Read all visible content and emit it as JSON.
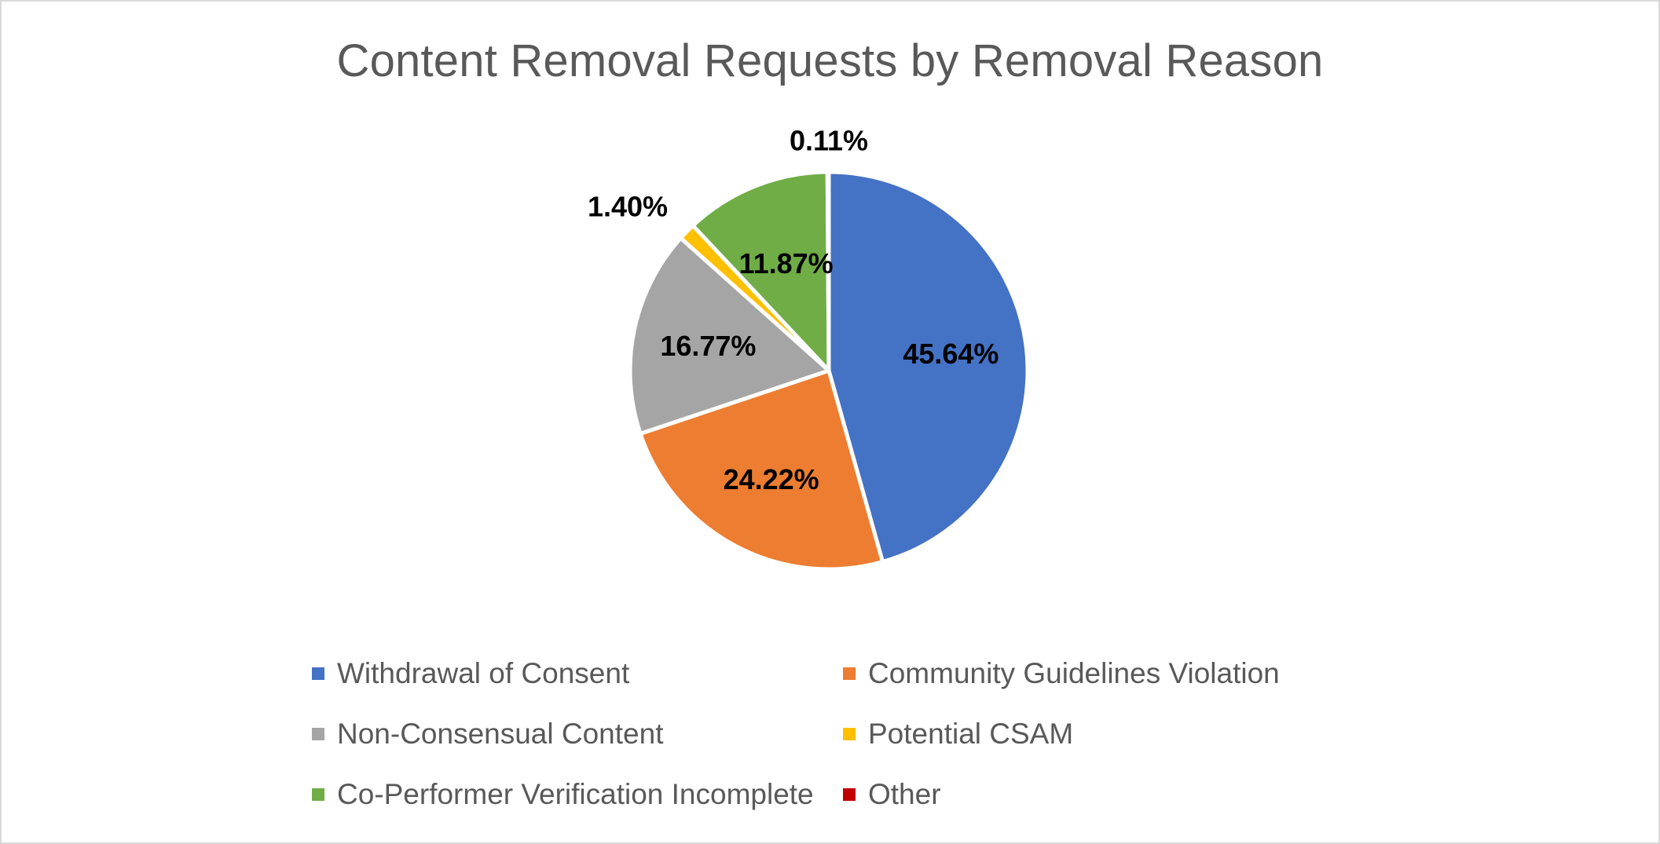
{
  "chart_data": {
    "type": "pie",
    "title": "Content Removal Requests by Removal Reason",
    "legend_position": "bottom",
    "slices": [
      {
        "name": "Withdrawal of Consent",
        "value": 45.64,
        "label": "45.64%",
        "color": "#4472C4"
      },
      {
        "name": "Community Guidelines Violation",
        "value": 24.22,
        "label": "24.22%",
        "color": "#ED7D31"
      },
      {
        "name": "Non-Consensual Content",
        "value": 16.77,
        "label": "16.77%",
        "color": "#A5A5A5"
      },
      {
        "name": "Potential CSAM",
        "value": 1.4,
        "label": "1.40%",
        "color": "#FFC000"
      },
      {
        "name": "Co-Performer Verification Incomplete",
        "value": 11.87,
        "label": "11.87%",
        "color": "#70AD47"
      },
      {
        "name": "Other",
        "value": 0.11,
        "label": "0.11%",
        "color": "#C00000"
      }
    ]
  }
}
